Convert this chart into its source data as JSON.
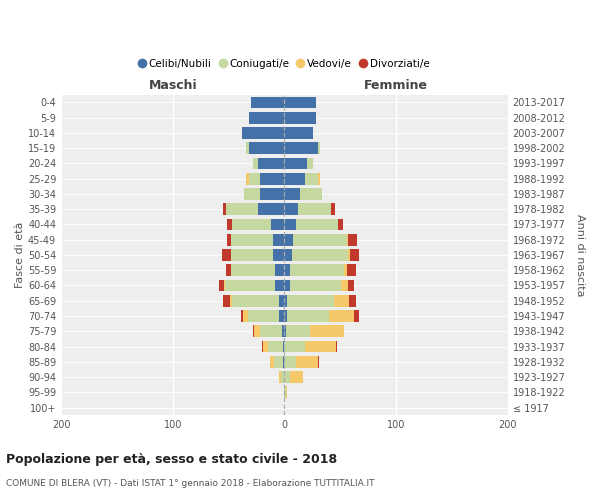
{
  "age_groups": [
    "0-4",
    "5-9",
    "10-14",
    "15-19",
    "20-24",
    "25-29",
    "30-34",
    "35-39",
    "40-44",
    "45-49",
    "50-54",
    "55-59",
    "60-64",
    "65-69",
    "70-74",
    "75-79",
    "80-84",
    "85-89",
    "90-94",
    "95-99",
    "100+"
  ],
  "birth_years": [
    "2013-2017",
    "2008-2012",
    "2003-2007",
    "1998-2002",
    "1993-1997",
    "1988-1992",
    "1983-1987",
    "1978-1982",
    "1973-1977",
    "1968-1972",
    "1963-1967",
    "1958-1962",
    "1953-1957",
    "1948-1952",
    "1943-1947",
    "1938-1942",
    "1933-1937",
    "1928-1932",
    "1923-1927",
    "1918-1922",
    "≤ 1917"
  ],
  "males": {
    "celibi": [
      30,
      32,
      38,
      32,
      24,
      22,
      22,
      24,
      12,
      10,
      10,
      8,
      8,
      5,
      5,
      2,
      1,
      1,
      0,
      0,
      0
    ],
    "coniugati": [
      0,
      0,
      0,
      2,
      4,
      10,
      14,
      28,
      35,
      38,
      38,
      40,
      45,
      42,
      28,
      20,
      14,
      8,
      3,
      0,
      0
    ],
    "vedovi": [
      0,
      0,
      0,
      0,
      0,
      2,
      0,
      0,
      0,
      0,
      0,
      0,
      1,
      2,
      4,
      5,
      4,
      4,
      2,
      0,
      0
    ],
    "divorziati": [
      0,
      0,
      0,
      0,
      0,
      0,
      0,
      3,
      4,
      3,
      8,
      4,
      5,
      6,
      2,
      1,
      1,
      0,
      0,
      0,
      0
    ]
  },
  "females": {
    "nubili": [
      28,
      28,
      26,
      30,
      20,
      18,
      14,
      12,
      10,
      8,
      7,
      5,
      5,
      2,
      2,
      1,
      0,
      0,
      0,
      0,
      0
    ],
    "coniugate": [
      0,
      0,
      0,
      2,
      6,
      12,
      20,
      30,
      38,
      48,
      50,
      48,
      46,
      42,
      38,
      22,
      18,
      10,
      5,
      1,
      0
    ],
    "vedove": [
      0,
      0,
      0,
      0,
      0,
      2,
      0,
      0,
      0,
      1,
      2,
      3,
      6,
      14,
      22,
      30,
      28,
      20,
      12,
      1,
      0
    ],
    "divorziate": [
      0,
      0,
      0,
      0,
      0,
      0,
      0,
      3,
      4,
      8,
      8,
      8,
      5,
      6,
      5,
      0,
      1,
      1,
      0,
      0,
      0
    ]
  },
  "colors": {
    "celibi": "#4472a8",
    "coniugati": "#c5d8a0",
    "vedovi": "#f5c96a",
    "divorziati": "#c0392b"
  },
  "xlim": 200,
  "title": "Popolazione per età, sesso e stato civile - 2018",
  "subtitle": "COMUNE DI BLERA (VT) - Dati ISTAT 1° gennaio 2018 - Elaborazione TUTTITALIA.IT",
  "ylabel_left": "Fasce di età",
  "ylabel_right": "Anni di nascita",
  "xlabel_left": "Maschi",
  "xlabel_right": "Femmine",
  "legend_labels": [
    "Celibi/Nubili",
    "Coniugati/e",
    "Vedovi/e",
    "Divorziati/e"
  ],
  "bg_color": "#eeeeee"
}
